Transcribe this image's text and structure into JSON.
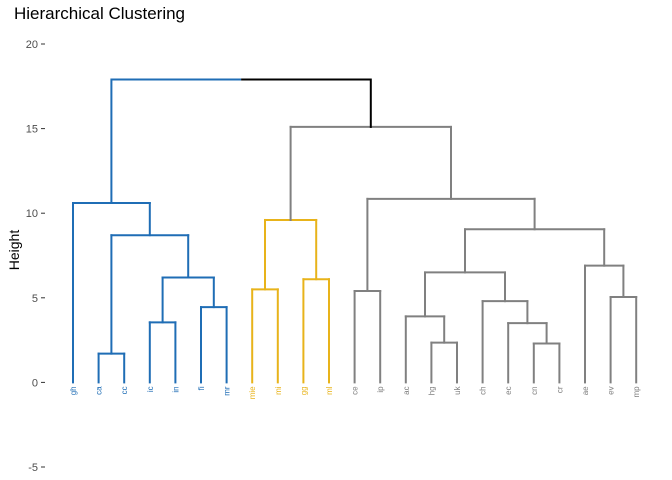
{
  "chart_data": {
    "type": "dendrogram",
    "title": "Hierarchical Clustering",
    "ylabel": "Height",
    "ylim": [
      -5,
      20
    ],
    "yticks": [
      -5,
      0,
      5,
      10,
      15,
      20
    ],
    "colors": {
      "blue": "#1f6db5",
      "gold": "#e8b31a",
      "grey": "#808080",
      "root": "#000000"
    },
    "leaves": [
      {
        "label": "gh",
        "color": "blue"
      },
      {
        "label": "ca",
        "color": "blue"
      },
      {
        "label": "cc",
        "color": "blue"
      },
      {
        "label": "ic",
        "color": "blue"
      },
      {
        "label": "in",
        "color": "blue"
      },
      {
        "label": "fi",
        "color": "blue"
      },
      {
        "label": "mr",
        "color": "blue"
      },
      {
        "label": "mie",
        "color": "gold"
      },
      {
        "label": "mi",
        "color": "gold"
      },
      {
        "label": "gg",
        "color": "gold"
      },
      {
        "label": "ml",
        "color": "gold"
      },
      {
        "label": "ce",
        "color": "grey"
      },
      {
        "label": "ip",
        "color": "grey"
      },
      {
        "label": "ac",
        "color": "grey"
      },
      {
        "label": "hg",
        "color": "grey"
      },
      {
        "label": "uk",
        "color": "grey"
      },
      {
        "label": "ch",
        "color": "grey"
      },
      {
        "label": "ec",
        "color": "grey"
      },
      {
        "label": "cn",
        "color": "grey"
      },
      {
        "label": "cr",
        "color": "grey"
      },
      {
        "label": "ae",
        "color": "grey"
      },
      {
        "label": "ev",
        "color": "grey"
      },
      {
        "label": "mp",
        "color": "grey"
      }
    ],
    "merges": [
      {
        "id": "m1",
        "left": 1,
        "right": 2,
        "height": 1.7,
        "color": "blue"
      },
      {
        "id": "m2",
        "left": 3,
        "right": 4,
        "height": 3.55,
        "color": "blue"
      },
      {
        "id": "m3",
        "left": 5,
        "right": 6,
        "height": 4.45,
        "color": "blue"
      },
      {
        "id": "m4",
        "left": "m2",
        "right": "m3",
        "height": 6.2,
        "color": "blue"
      },
      {
        "id": "m5",
        "left": "m1",
        "right": "m4",
        "height": 8.7,
        "color": "blue"
      },
      {
        "id": "m6",
        "left": 0,
        "right": "m5",
        "height": 10.6,
        "color": "blue"
      },
      {
        "id": "m7",
        "left": 7,
        "right": 8,
        "height": 5.5,
        "color": "gold"
      },
      {
        "id": "m8",
        "left": 9,
        "right": 10,
        "height": 6.1,
        "color": "gold"
      },
      {
        "id": "m9",
        "left": "m7",
        "right": "m8",
        "height": 9.6,
        "color": "gold"
      },
      {
        "id": "m10",
        "left": 11,
        "right": 12,
        "height": 5.4,
        "color": "grey"
      },
      {
        "id": "m11",
        "left": 14,
        "right": 15,
        "height": 2.35,
        "color": "grey"
      },
      {
        "id": "m12",
        "left": 13,
        "right": "m11",
        "height": 3.9,
        "color": "grey"
      },
      {
        "id": "m13",
        "left": 18,
        "right": 19,
        "height": 2.3,
        "color": "grey"
      },
      {
        "id": "m14",
        "left": 17,
        "right": "m13",
        "height": 3.5,
        "color": "grey"
      },
      {
        "id": "m15",
        "left": 16,
        "right": "m14",
        "height": 4.8,
        "color": "grey"
      },
      {
        "id": "m16",
        "left": "m12",
        "right": "m15",
        "height": 6.5,
        "color": "grey"
      },
      {
        "id": "m17",
        "left": 21,
        "right": 22,
        "height": 5.05,
        "color": "grey"
      },
      {
        "id": "m18",
        "left": 20,
        "right": "m17",
        "height": 6.9,
        "color": "grey"
      },
      {
        "id": "m19",
        "left": "m16",
        "right": "m18",
        "height": 9.05,
        "color": "grey"
      },
      {
        "id": "m20",
        "left": "m10",
        "right": "m19",
        "height": 10.85,
        "color": "grey"
      },
      {
        "id": "m21",
        "left": "m9",
        "right": "m20",
        "height": 15.1,
        "color": "grey"
      },
      {
        "id": "m22",
        "left": "m6",
        "right": "m21",
        "height": 17.9,
        "color": "root"
      }
    ]
  }
}
